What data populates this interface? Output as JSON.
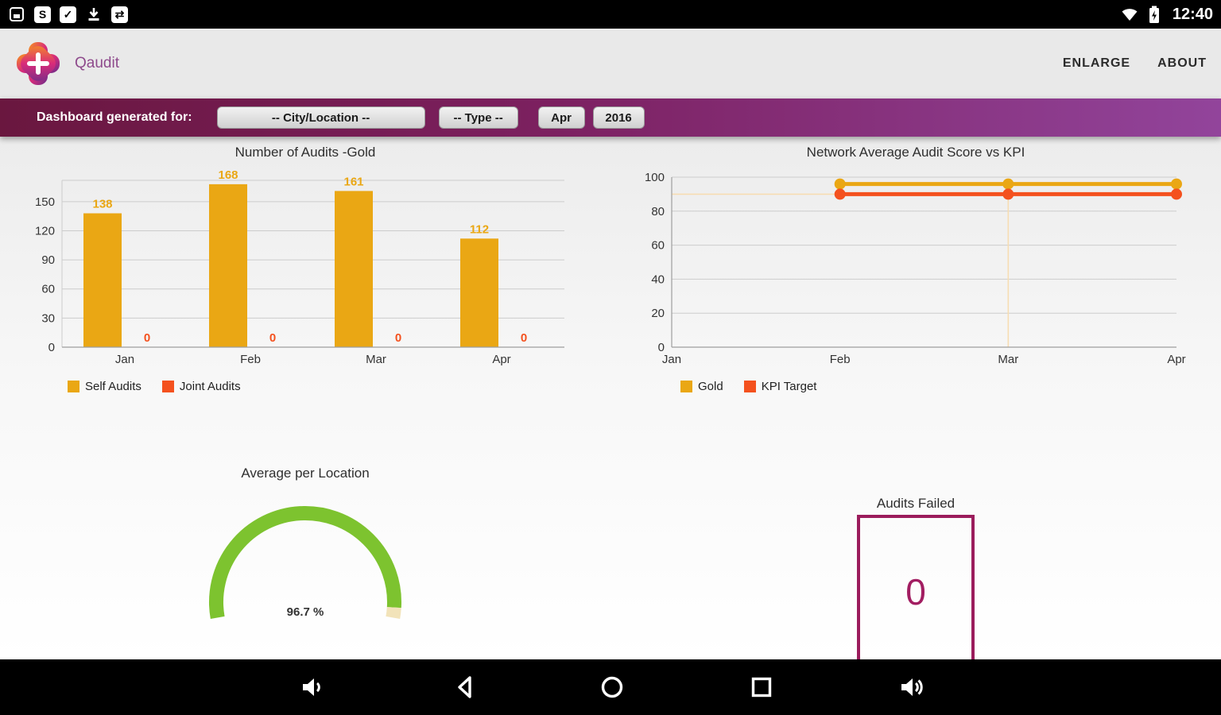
{
  "status_bar": {
    "time": "12:40",
    "icons_left": [
      "screenshot-icon",
      "skype-icon",
      "check-icon",
      "download-icon",
      "transfer-icon"
    ],
    "icons_right": [
      "wifi-icon",
      "battery-charging-icon"
    ],
    "skype_glyph": "S",
    "check_glyph": "✓",
    "transfer_glyph": "⇄"
  },
  "header": {
    "app_name": "Qaudit",
    "enlarge_label": "ENLARGE",
    "about_label": "ABOUT"
  },
  "filter_bar": {
    "label": "Dashboard generated for:",
    "dropdowns": [
      "-- City/Location --",
      "-- Type --",
      "Apr",
      "2016"
    ]
  },
  "chart_data": [
    {
      "type": "bar",
      "title": "Number of Audits -Gold",
      "categories": [
        "Jan",
        "Feb",
        "Mar",
        "Apr"
      ],
      "series": [
        {
          "name": "Self Audits",
          "color": "#eaa714",
          "values": [
            138,
            168,
            161,
            112
          ]
        },
        {
          "name": "Joint Audits",
          "color": "#f4511e",
          "values": [
            0,
            0,
            0,
            0
          ]
        }
      ],
      "yticks": [
        0,
        30,
        60,
        90,
        120,
        150
      ],
      "ylim": [
        0,
        172
      ],
      "grid": true,
      "legend_position": "bottom-left"
    },
    {
      "type": "line",
      "title": "Network Average Audit Score vs KPI",
      "categories": [
        "Jan",
        "Feb",
        "Mar",
        "Apr"
      ],
      "series": [
        {
          "name": "Gold",
          "color": "#eaa714",
          "points": [
            {
              "x": 1,
              "y": 96
            },
            {
              "x": 2,
              "y": 96
            },
            {
              "x": 3,
              "y": 96
            }
          ]
        },
        {
          "name": "KPI Target",
          "color": "#f4511e",
          "points": [
            {
              "x": 1,
              "y": 90
            },
            {
              "x": 2,
              "y": 90
            },
            {
              "x": 3,
              "y": 90
            }
          ]
        }
      ],
      "kpi_reference": 90,
      "yticks": [
        0,
        20,
        40,
        60,
        80,
        100
      ],
      "ylim": [
        0,
        100
      ],
      "grid": true,
      "legend_position": "bottom-left"
    },
    {
      "type": "gauge",
      "title": "Average per Location",
      "value": 96.7,
      "value_label": "96.7 %",
      "range": [
        0,
        100
      ],
      "color": "#7dc32f",
      "rest_color": "#f2e3b9"
    },
    {
      "type": "kpi",
      "title": "Audits Failed",
      "value": "0",
      "color": "#9b1c5c"
    }
  ],
  "nav_bar": {
    "icons": [
      "volume-down-icon",
      "back-icon",
      "home-icon",
      "recents-icon",
      "volume-up-icon"
    ]
  }
}
